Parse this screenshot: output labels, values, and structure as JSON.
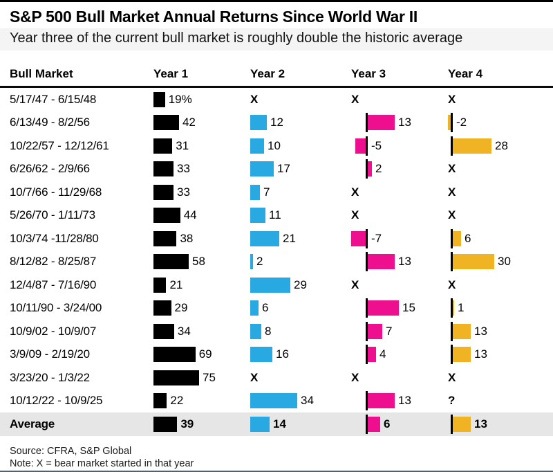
{
  "title": "S&P 500 Bull Market Annual Returns Since World War II",
  "subtitle": "Year three of the current bull market is roughly double the historic average",
  "header": {
    "columns": [
      "Bull Market",
      "Year 1",
      "Year 2",
      "Year 3",
      "Year 4"
    ]
  },
  "footer": {
    "source": "Source: CFRA, S&P Global",
    "note": "Note: X = bear market started in that year"
  },
  "colors": {
    "year1": "#000000",
    "year2": "#29A9E1",
    "year3": "#EE0F8F",
    "year4": "#F0B323",
    "average_row_bg": "#E6E6E6",
    "axis_tick": "#000000"
  },
  "chart_data": {
    "type": "bar",
    "orientation": "horizontal",
    "unit": "percent annual return",
    "columns": [
      "Year 1",
      "Year 2",
      "Year 3",
      "Year 4"
    ],
    "no_data_marker": "X",
    "no_data_meaning": "bear market started in that year",
    "unknown_marker": "?",
    "rows": [
      {
        "label": "5/17/47 - 6/15/48",
        "year1": 19,
        "year1_label": "19%",
        "year2": "X",
        "year3": "X",
        "year4": "X"
      },
      {
        "label": "6/13/49 - 8/2/56",
        "year1": 42,
        "year2": 12,
        "year3": 13,
        "year4": -2
      },
      {
        "label": "10/22/57 - 12/12/61",
        "year1": 31,
        "year2": 10,
        "year3": -5,
        "year4": 28
      },
      {
        "label": "6/26/62 - 2/9/66",
        "year1": 33,
        "year2": 17,
        "year3": 2,
        "year4": "X"
      },
      {
        "label": "10/7/66 - 11/29/68",
        "year1": 33,
        "year2": 7,
        "year3": "X",
        "year4": "X"
      },
      {
        "label": "5/26/70 - 1/11/73",
        "year1": 44,
        "year2": 11,
        "year3": "X",
        "year4": "X"
      },
      {
        "label": "10/3/74 -11/28/80",
        "year1": 38,
        "year2": 21,
        "year3": -7,
        "year4": 6
      },
      {
        "label": "8/12/82 - 8/25/87",
        "year1": 58,
        "year2": 2,
        "year3": 13,
        "year4": 30
      },
      {
        "label": "12/4/87 - 7/16/90",
        "year1": 21,
        "year2": 29,
        "year3": "X",
        "year4": "X"
      },
      {
        "label": "10/11/90 - 3/24/00",
        "year1": 29,
        "year2": 6,
        "year3": 15,
        "year4": 1
      },
      {
        "label": "10/9/02 - 10/9/07",
        "year1": 34,
        "year2": 8,
        "year3": 7,
        "year4": 13
      },
      {
        "label": "3/9/09 - 2/19/20",
        "year1": 69,
        "year2": 16,
        "year3": 4,
        "year4": 13
      },
      {
        "label": "3/23/20 - 1/3/22",
        "year1": 75,
        "year2": "X",
        "year3": "X",
        "year4": "X"
      },
      {
        "label": "10/12/22 - 10/9/25",
        "year1": 22,
        "year2": 34,
        "year3": 13,
        "year4": "?"
      },
      {
        "label": "Average",
        "is_average": true,
        "year1": 39,
        "year2": 14,
        "year3": 6,
        "year4": 13
      }
    ]
  }
}
